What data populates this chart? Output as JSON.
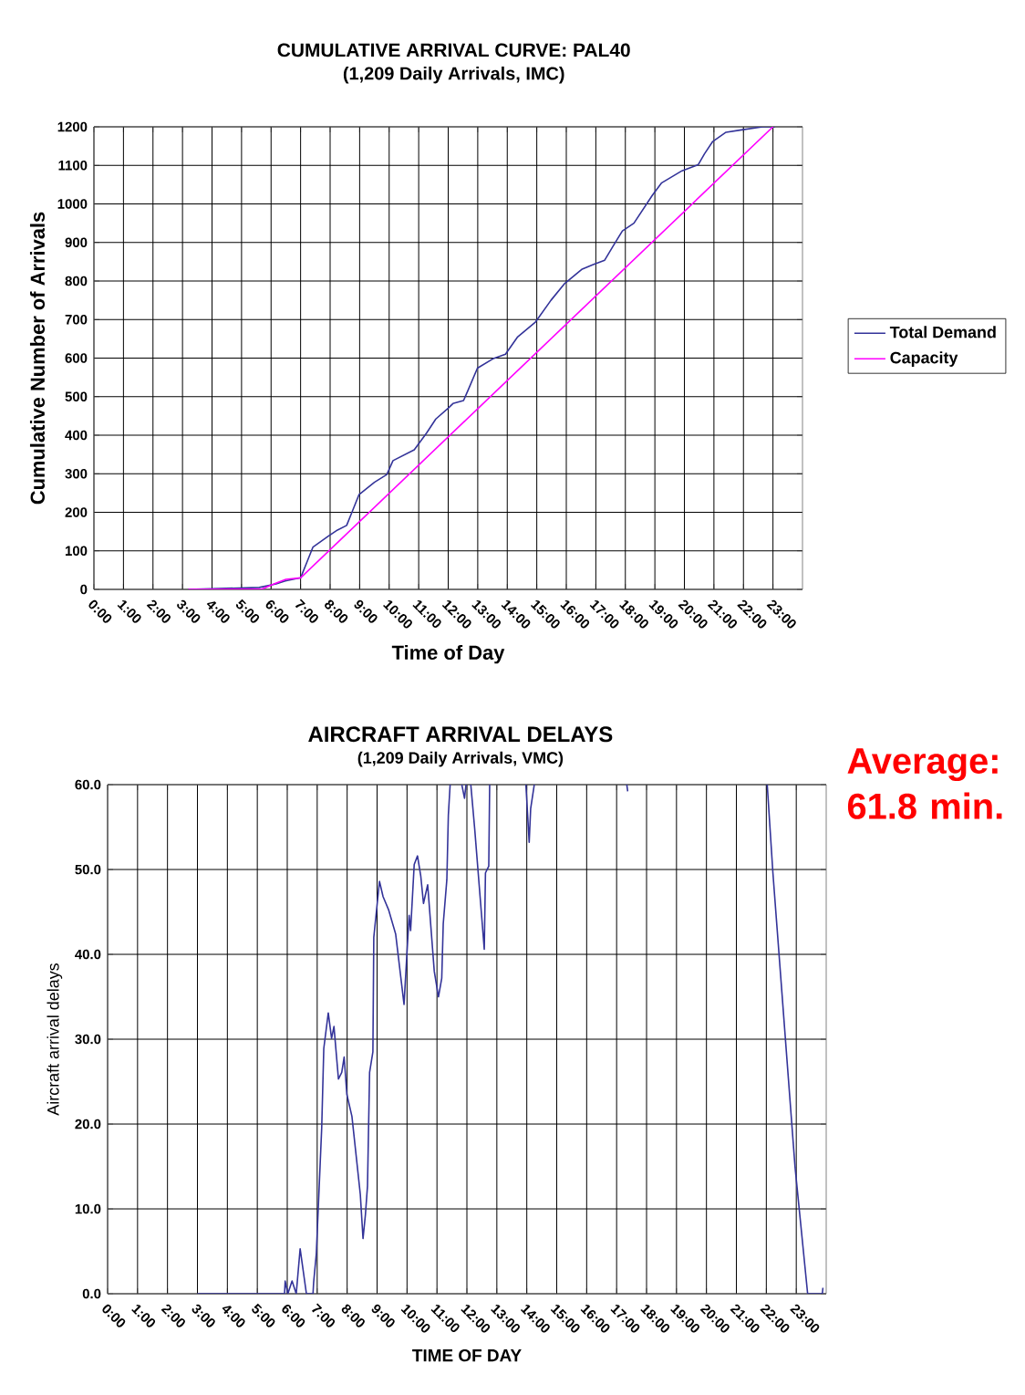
{
  "chart_data": [
    {
      "type": "line",
      "title": "CUMULATIVE ARRIVAL CURVE:  PAL40",
      "subtitle": "(1,209 Daily Arrivals, IMC)",
      "xlabel": "Time of Day",
      "ylabel": "Cumulative Number of Arrivals",
      "xlim": [
        0,
        24
      ],
      "ylim": [
        0,
        1200
      ],
      "xticks": [
        {
          "value": 0,
          "label": "0:00"
        },
        {
          "value": 1,
          "label": "1:00"
        },
        {
          "value": 2,
          "label": "2:00"
        },
        {
          "value": 3,
          "label": "3:00"
        },
        {
          "value": 4,
          "label": "4:00"
        },
        {
          "value": 5,
          "label": "5:00"
        },
        {
          "value": 6,
          "label": "6:00"
        },
        {
          "value": 7,
          "label": "7:00"
        },
        {
          "value": 8,
          "label": "8:00"
        },
        {
          "value": 9,
          "label": "9:00"
        },
        {
          "value": 10,
          "label": "10:00"
        },
        {
          "value": 11,
          "label": "11:00"
        },
        {
          "value": 12,
          "label": "12:00"
        },
        {
          "value": 13,
          "label": "13:00"
        },
        {
          "value": 14,
          "label": "14:00"
        },
        {
          "value": 15,
          "label": "15:00"
        },
        {
          "value": 16,
          "label": "16:00"
        },
        {
          "value": 17,
          "label": "17:00"
        },
        {
          "value": 18,
          "label": "18:00"
        },
        {
          "value": 19,
          "label": "19:00"
        },
        {
          "value": 20,
          "label": "20:00"
        },
        {
          "value": 21,
          "label": "21:00"
        },
        {
          "value": 22,
          "label": "22:00"
        },
        {
          "value": 23,
          "label": "23:00"
        }
      ],
      "yticks": [
        0,
        100,
        200,
        300,
        400,
        500,
        600,
        700,
        800,
        900,
        1000,
        1100,
        1200
      ],
      "grid": true,
      "legend": "right",
      "series": [
        {
          "name": "Total Demand",
          "color": "#333399",
          "x": [
            3.2,
            5.6,
            6.17,
            6.48,
            7.0,
            7.21,
            7.42,
            7.94,
            8.25,
            8.56,
            8.77,
            8.98,
            9.5,
            9.92,
            10.13,
            10.85,
            11.27,
            11.58,
            12.0,
            12.16,
            12.52,
            12.68,
            12.99,
            13.51,
            13.94,
            14.34,
            14.96,
            15.48,
            15.95,
            16.52,
            16.89,
            17.3,
            17.61,
            17.9,
            18.29,
            18.91,
            19.22,
            19.92,
            20.47,
            20.68,
            20.96,
            21.41,
            21.93,
            22.65,
            23.07
          ],
          "values": [
            0,
            5,
            14,
            22,
            30,
            70,
            110,
            138,
            154,
            166,
            206,
            246,
            278,
            298,
            334,
            362,
            406,
            442,
            470,
            482,
            490,
            518,
            574,
            598,
            610,
            654,
            694,
            750,
            794,
            830,
            842,
            854,
            894,
            930,
            950,
            1022,
            1054,
            1086,
            1102,
            1130,
            1162,
            1186,
            1192,
            1200,
            1200
          ]
        },
        {
          "name": "Capacity",
          "color": "#ff00ff",
          "x": [
            3.2,
            5.7,
            6.1,
            6.5,
            7.0,
            23.0
          ],
          "values": [
            0,
            1,
            14,
            26,
            30,
            1200
          ]
        }
      ]
    },
    {
      "type": "line",
      "title": "AIRCRAFT ARRIVAL  DELAYS",
      "subtitle": "(1,209 Daily Arrivals, VMC)",
      "xlabel": "TIME OF DAY",
      "ylabel": "Aircraft arrival delays",
      "annotations": [
        "Average: 61.8 min."
      ],
      "xlim": [
        0,
        24
      ],
      "ylim": [
        0,
        60
      ],
      "xticks": [
        {
          "value": 0,
          "label": "0:00"
        },
        {
          "value": 1,
          "label": "1:00"
        },
        {
          "value": 2,
          "label": "2:00"
        },
        {
          "value": 3,
          "label": "3:00"
        },
        {
          "value": 4,
          "label": "4:00"
        },
        {
          "value": 5,
          "label": "5:00"
        },
        {
          "value": 6,
          "label": "6:00"
        },
        {
          "value": 7,
          "label": "7:00"
        },
        {
          "value": 8,
          "label": "8:00"
        },
        {
          "value": 9,
          "label": "9:00"
        },
        {
          "value": 10,
          "label": "10:00"
        },
        {
          "value": 11,
          "label": "11:00"
        },
        {
          "value": 12,
          "label": "12:00"
        },
        {
          "value": 13,
          "label": "13:00"
        },
        {
          "value": 14,
          "label": "14:00"
        },
        {
          "value": 15,
          "label": "15:00"
        },
        {
          "value": 16,
          "label": "16:00"
        },
        {
          "value": 17,
          "label": "17:00"
        },
        {
          "value": 18,
          "label": "18:00"
        },
        {
          "value": 19,
          "label": "19:00"
        },
        {
          "value": 20,
          "label": "20:00"
        },
        {
          "value": 21,
          "label": "21:00"
        },
        {
          "value": 22,
          "label": "22:00"
        },
        {
          "value": 23,
          "label": "23:00"
        }
      ],
      "yticks": [
        {
          "value": 0,
          "label": "0.0"
        },
        {
          "value": 10,
          "label": "10.0"
        },
        {
          "value": 20,
          "label": "20.0"
        },
        {
          "value": 30,
          "label": "30.0"
        },
        {
          "value": 40,
          "label": "40.0"
        },
        {
          "value": 50,
          "label": "50.0"
        },
        {
          "value": 60,
          "label": "60.0"
        }
      ],
      "grid": true,
      "series": [
        {
          "color": "#333399",
          "x": [
            3.0,
            5.91,
            5.93,
            6.02,
            6.16,
            6.3,
            6.43,
            6.64,
            6.86,
            6.88,
            6.97,
            7.06,
            7.15,
            7.22,
            7.37,
            7.48,
            7.56,
            7.71,
            7.82,
            7.9,
            7.99,
            8.16,
            8.44,
            8.53,
            8.61,
            8.68,
            8.75,
            8.86,
            8.89,
            9.08,
            9.2,
            9.39,
            9.62,
            9.9,
            10.07,
            10.12,
            10.24,
            10.35,
            10.46,
            10.55,
            10.69,
            10.91,
            11.05,
            11.16,
            11.21,
            11.33,
            11.38,
            11.44,
            11.6,
            11.83,
            11.92,
            11.97,
            12.05,
            12.13,
            12.26,
            12.58,
            12.62,
            12.73,
            12.76,
            13.5,
            13.97,
            14.08,
            14.13,
            14.25,
            15.5,
            17.34,
            17.37,
            20.0,
            22.03,
            22.22,
            22.61,
            22.96,
            23.38,
            23.87,
            23.89
          ],
          "values": [
            0,
            0,
            1.5,
            0,
            1.5,
            0,
            5.3,
            0,
            0,
            1.3,
            4.7,
            12.1,
            19.5,
            28.9,
            33.1,
            30.1,
            31.5,
            25.3,
            26.1,
            27.9,
            23.5,
            20.9,
            11.7,
            6.5,
            9.3,
            12.7,
            26.1,
            28.5,
            42.0,
            48.6,
            46.8,
            45.2,
            42.4,
            34.1,
            44.6,
            42.8,
            50.6,
            51.6,
            49.2,
            46.0,
            48.2,
            38.0,
            35.0,
            37.2,
            43.6,
            48.8,
            56.4,
            60,
            null,
            60,
            58.4,
            60,
            null,
            60,
            54.8,
            40.6,
            49.6,
            50.4,
            60,
            null,
            60,
            53.2,
            57.2,
            60,
            null,
            60,
            59.2,
            null,
            60,
            49.6,
            31.3,
            14.9,
            0,
            0,
            0.7
          ]
        }
      ]
    }
  ]
}
